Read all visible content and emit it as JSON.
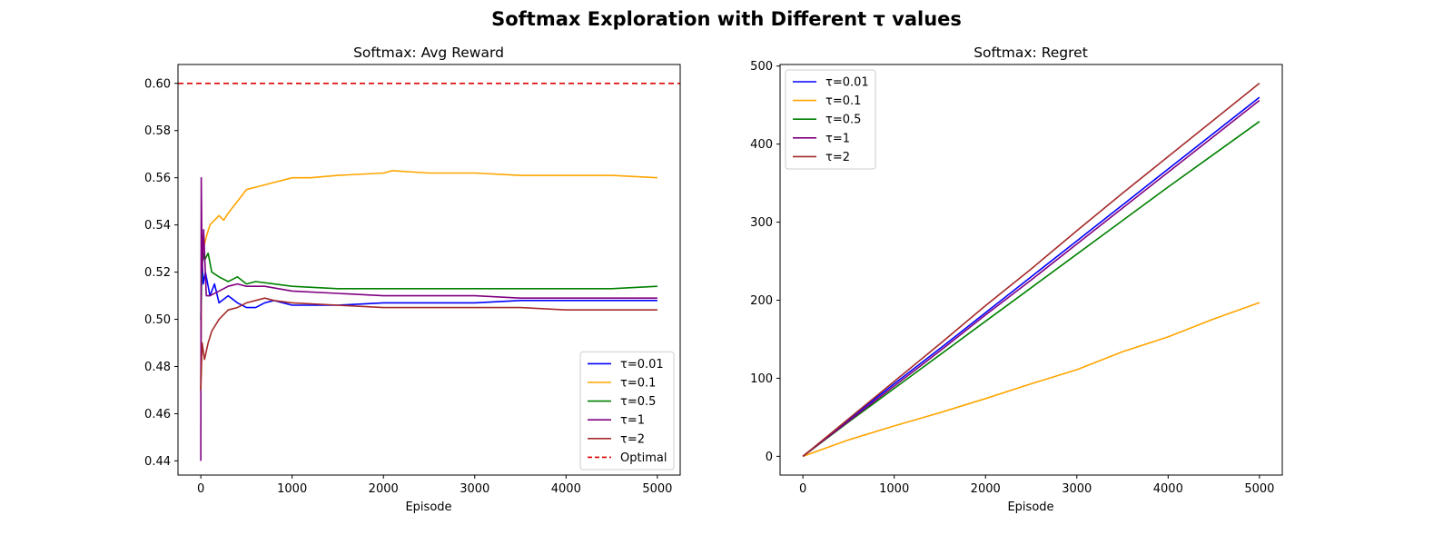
{
  "figure": {
    "suptitle": "Softmax Exploration with Different τ values"
  },
  "chart_data": [
    {
      "type": "line",
      "title": "Softmax: Avg Reward",
      "xlabel": "Episode",
      "ylabel": "",
      "xlim": [
        -250,
        5250
      ],
      "ylim": [
        0.434,
        0.608
      ],
      "xticks": [
        0,
        1000,
        2000,
        3000,
        4000,
        5000
      ],
      "yticks": [
        0.44,
        0.46,
        0.48,
        0.5,
        0.52,
        0.54,
        0.56,
        0.58,
        0.6
      ],
      "tick_decimals": 2,
      "grid": false,
      "legend_position": "lower-right",
      "reference_line": {
        "name": "Optimal",
        "y": 0.6,
        "color": "#dd0000",
        "style": "dashed"
      },
      "series": [
        {
          "name": "τ=0.01",
          "color": "#0000ff",
          "points": [
            [
              0,
              0.47
            ],
            [
              10,
              0.53
            ],
            [
              25,
              0.515
            ],
            [
              50,
              0.52
            ],
            [
              100,
              0.51
            ],
            [
              150,
              0.515
            ],
            [
              200,
              0.507
            ],
            [
              300,
              0.51
            ],
            [
              400,
              0.507
            ],
            [
              500,
              0.505
            ],
            [
              600,
              0.505
            ],
            [
              700,
              0.507
            ],
            [
              800,
              0.508
            ],
            [
              1000,
              0.506
            ],
            [
              1500,
              0.506
            ],
            [
              2000,
              0.507
            ],
            [
              2500,
              0.507
            ],
            [
              3000,
              0.507
            ],
            [
              3500,
              0.508
            ],
            [
              4000,
              0.508
            ],
            [
              4500,
              0.508
            ],
            [
              5000,
              0.508
            ]
          ]
        },
        {
          "name": "τ=0.1",
          "color": "#ffa500",
          "points": [
            [
              0,
              0.47
            ],
            [
              10,
              0.53
            ],
            [
              30,
              0.53
            ],
            [
              60,
              0.535
            ],
            [
              100,
              0.54
            ],
            [
              150,
              0.542
            ],
            [
              200,
              0.544
            ],
            [
              250,
              0.542
            ],
            [
              300,
              0.545
            ],
            [
              400,
              0.55
            ],
            [
              500,
              0.555
            ],
            [
              600,
              0.556
            ],
            [
              700,
              0.557
            ],
            [
              800,
              0.558
            ],
            [
              1000,
              0.56
            ],
            [
              1200,
              0.56
            ],
            [
              1500,
              0.561
            ],
            [
              2000,
              0.562
            ],
            [
              2100,
              0.563
            ],
            [
              2500,
              0.562
            ],
            [
              3000,
              0.562
            ],
            [
              3500,
              0.561
            ],
            [
              4000,
              0.561
            ],
            [
              4500,
              0.561
            ],
            [
              5000,
              0.56
            ]
          ]
        },
        {
          "name": "τ=0.5",
          "color": "#008000",
          "points": [
            [
              0,
              0.5
            ],
            [
              15,
              0.53
            ],
            [
              40,
              0.525
            ],
            [
              80,
              0.528
            ],
            [
              120,
              0.52
            ],
            [
              200,
              0.518
            ],
            [
              300,
              0.516
            ],
            [
              400,
              0.518
            ],
            [
              500,
              0.515
            ],
            [
              600,
              0.516
            ],
            [
              800,
              0.515
            ],
            [
              1000,
              0.514
            ],
            [
              1500,
              0.513
            ],
            [
              2000,
              0.513
            ],
            [
              2500,
              0.513
            ],
            [
              3000,
              0.513
            ],
            [
              3500,
              0.513
            ],
            [
              4000,
              0.513
            ],
            [
              4500,
              0.513
            ],
            [
              5000,
              0.514
            ]
          ]
        },
        {
          "name": "τ=1",
          "color": "#800080",
          "points": [
            [
              0,
              0.44
            ],
            [
              5,
              0.56
            ],
            [
              15,
              0.52
            ],
            [
              30,
              0.538
            ],
            [
              60,
              0.51
            ],
            [
              100,
              0.51
            ],
            [
              200,
              0.512
            ],
            [
              300,
              0.514
            ],
            [
              400,
              0.515
            ],
            [
              500,
              0.514
            ],
            [
              700,
              0.514
            ],
            [
              1000,
              0.512
            ],
            [
              1500,
              0.511
            ],
            [
              2000,
              0.51
            ],
            [
              2500,
              0.51
            ],
            [
              3000,
              0.51
            ],
            [
              3500,
              0.509
            ],
            [
              4000,
              0.509
            ],
            [
              4500,
              0.509
            ],
            [
              5000,
              0.509
            ]
          ]
        },
        {
          "name": "τ=2",
          "color": "#a52a2a",
          "points": [
            [
              0,
              0.47
            ],
            [
              15,
              0.49
            ],
            [
              40,
              0.483
            ],
            [
              80,
              0.49
            ],
            [
              120,
              0.495
            ],
            [
              200,
              0.5
            ],
            [
              300,
              0.504
            ],
            [
              400,
              0.505
            ],
            [
              500,
              0.507
            ],
            [
              600,
              0.508
            ],
            [
              700,
              0.509
            ],
            [
              800,
              0.508
            ],
            [
              1000,
              0.507
            ],
            [
              1500,
              0.506
            ],
            [
              2000,
              0.505
            ],
            [
              2500,
              0.505
            ],
            [
              3000,
              0.505
            ],
            [
              3500,
              0.505
            ],
            [
              4000,
              0.504
            ],
            [
              4500,
              0.504
            ],
            [
              5000,
              0.504
            ]
          ]
        }
      ]
    },
    {
      "type": "line",
      "title": "Softmax: Regret",
      "xlabel": "Episode",
      "ylabel": "",
      "xlim": [
        -250,
        5250
      ],
      "ylim": [
        -24,
        502
      ],
      "xticks": [
        0,
        1000,
        2000,
        3000,
        4000,
        5000
      ],
      "yticks": [
        0,
        100,
        200,
        300,
        400,
        500
      ],
      "tick_decimals": 0,
      "grid": false,
      "legend_position": "upper-left",
      "series": [
        {
          "name": "τ=0.01",
          "color": "#0000ff",
          "points": [
            [
              0,
              0
            ],
            [
              500,
              47
            ],
            [
              1000,
              93
            ],
            [
              1500,
              138
            ],
            [
              2000,
              184
            ],
            [
              2500,
              230
            ],
            [
              3000,
              276
            ],
            [
              3500,
              322
            ],
            [
              4000,
              368
            ],
            [
              4500,
              414
            ],
            [
              5000,
              460
            ]
          ]
        },
        {
          "name": "τ=0.1",
          "color": "#ffa500",
          "points": [
            [
              0,
              0
            ],
            [
              500,
              21
            ],
            [
              1000,
              39
            ],
            [
              1500,
              56
            ],
            [
              2000,
              74
            ],
            [
              2500,
              93
            ],
            [
              3000,
              111
            ],
            [
              3500,
              134
            ],
            [
              4000,
              153
            ],
            [
              4500,
              176
            ],
            [
              5000,
              197
            ]
          ]
        },
        {
          "name": "τ=0.5",
          "color": "#008000",
          "points": [
            [
              0,
              0
            ],
            [
              500,
              44
            ],
            [
              1000,
              87
            ],
            [
              1500,
              130
            ],
            [
              2000,
              173
            ],
            [
              2500,
              216
            ],
            [
              3000,
              259
            ],
            [
              3500,
              302
            ],
            [
              4000,
              345
            ],
            [
              4500,
              387
            ],
            [
              5000,
              429
            ]
          ]
        },
        {
          "name": "τ=1",
          "color": "#800080",
          "points": [
            [
              0,
              0
            ],
            [
              500,
              45
            ],
            [
              1000,
              90
            ],
            [
              1500,
              135
            ],
            [
              2000,
              181
            ],
            [
              2500,
              226
            ],
            [
              3000,
              272
            ],
            [
              3500,
              318
            ],
            [
              4000,
              364
            ],
            [
              4500,
              410
            ],
            [
              5000,
              456
            ]
          ]
        },
        {
          "name": "τ=2",
          "color": "#a52a2a",
          "points": [
            [
              0,
              0
            ],
            [
              500,
              48
            ],
            [
              1000,
              96
            ],
            [
              1500,
              144
            ],
            [
              2000,
              193
            ],
            [
              2500,
              240
            ],
            [
              3000,
              289
            ],
            [
              3500,
              337
            ],
            [
              4000,
              384
            ],
            [
              4500,
              431
            ],
            [
              5000,
              478
            ]
          ]
        }
      ]
    }
  ]
}
